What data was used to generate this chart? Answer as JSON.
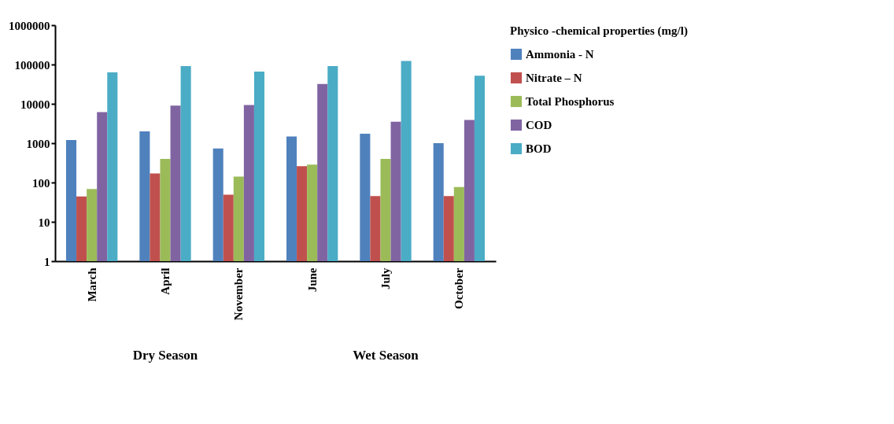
{
  "chart_data": {
    "type": "bar",
    "categories": [
      "March",
      "April",
      "November",
      "June",
      "July",
      "October"
    ],
    "legend_title": "Physico -chemical properties (mg/l)",
    "series": [
      {
        "name": "Ammonia - N",
        "color": "#4f81bd",
        "values": [
          1200,
          2000,
          730,
          1480,
          1740,
          1000
        ]
      },
      {
        "name": "Nitrate – N",
        "color": "#c0504d",
        "values": [
          44,
          170,
          49,
          260,
          45,
          45
        ]
      },
      {
        "name": "Total Phosphorus",
        "color": "#9bbb59",
        "values": [
          68,
          400,
          142,
          285,
          400,
          77
        ]
      },
      {
        "name": "COD",
        "color": "#8064a2",
        "values": [
          6200,
          9000,
          9300,
          32000,
          3500,
          3900
        ]
      },
      {
        "name": "BOD",
        "color": "#4bacc6",
        "values": [
          63000,
          91000,
          66000,
          91000,
          123000,
          52000
        ]
      }
    ],
    "log": true,
    "ylim": [
      1,
      1000000
    ],
    "yticks": [
      1,
      10,
      100,
      1000,
      10000,
      100000,
      1000000
    ],
    "grid": false,
    "legend": "right",
    "annotations": [
      "Dry Season",
      "Wet Season"
    ]
  }
}
